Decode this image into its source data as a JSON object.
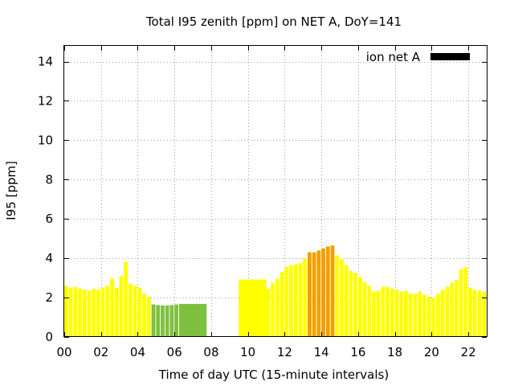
{
  "chart_data": {
    "type": "bar",
    "title": "Total I95 zenith [ppm] on NET A, DoY=141",
    "xlabel": "Time of day UTC (15-minute intervals)",
    "ylabel": "I95 [ppm]",
    "xlim": [
      0,
      23
    ],
    "ylim": [
      0,
      14.8
    ],
    "xticks": [
      "00",
      "02",
      "04",
      "06",
      "08",
      "10",
      "12",
      "14",
      "16",
      "18",
      "20",
      "22"
    ],
    "yticks": [
      "0",
      "2",
      "4",
      "6",
      "8",
      "10",
      "12",
      "14"
    ],
    "grid": true,
    "legend": {
      "label": "ion net A",
      "color": "#000000",
      "position": "top-right"
    },
    "colors": {
      "yellow": "#ffff00",
      "orange": "#f0a000",
      "green": "#80c040"
    },
    "bars": [
      {
        "x": 0.0,
        "w": 0.21,
        "y": 2.6,
        "c": "yellow"
      },
      {
        "x": 0.25,
        "w": 0.21,
        "y": 2.5,
        "c": "yellow"
      },
      {
        "x": 0.5,
        "w": 0.21,
        "y": 2.55,
        "c": "yellow"
      },
      {
        "x": 0.75,
        "w": 0.21,
        "y": 2.45,
        "c": "yellow"
      },
      {
        "x": 1.0,
        "w": 0.21,
        "y": 2.4,
        "c": "yellow"
      },
      {
        "x": 1.25,
        "w": 0.21,
        "y": 2.35,
        "c": "yellow"
      },
      {
        "x": 1.5,
        "w": 0.21,
        "y": 2.45,
        "c": "yellow"
      },
      {
        "x": 1.75,
        "w": 0.21,
        "y": 2.4,
        "c": "yellow"
      },
      {
        "x": 2.0,
        "w": 0.21,
        "y": 2.5,
        "c": "yellow"
      },
      {
        "x": 2.25,
        "w": 0.21,
        "y": 2.6,
        "c": "yellow"
      },
      {
        "x": 2.5,
        "w": 0.21,
        "y": 2.95,
        "c": "yellow"
      },
      {
        "x": 2.75,
        "w": 0.21,
        "y": 2.5,
        "c": "yellow"
      },
      {
        "x": 3.0,
        "w": 0.21,
        "y": 3.1,
        "c": "yellow"
      },
      {
        "x": 3.25,
        "w": 0.21,
        "y": 3.8,
        "c": "yellow"
      },
      {
        "x": 3.5,
        "w": 0.21,
        "y": 2.7,
        "c": "yellow"
      },
      {
        "x": 3.75,
        "w": 0.21,
        "y": 2.6,
        "c": "yellow"
      },
      {
        "x": 4.0,
        "w": 0.21,
        "y": 2.5,
        "c": "yellow"
      },
      {
        "x": 4.25,
        "w": 0.21,
        "y": 2.2,
        "c": "yellow"
      },
      {
        "x": 4.5,
        "w": 0.21,
        "y": 2.05,
        "c": "yellow"
      },
      {
        "x": 4.75,
        "w": 0.21,
        "y": 1.65,
        "c": "green"
      },
      {
        "x": 5.0,
        "w": 0.21,
        "y": 1.62,
        "c": "green"
      },
      {
        "x": 5.25,
        "w": 0.21,
        "y": 1.6,
        "c": "green"
      },
      {
        "x": 5.5,
        "w": 0.21,
        "y": 1.6,
        "c": "green"
      },
      {
        "x": 5.75,
        "w": 0.21,
        "y": 1.62,
        "c": "green"
      },
      {
        "x": 6.0,
        "w": 0.21,
        "y": 1.65,
        "c": "green"
      },
      {
        "x": 6.25,
        "w": 1.5,
        "y": 1.68,
        "c": "green"
      },
      {
        "x": 9.5,
        "w": 1.5,
        "y": 2.92,
        "c": "yellow"
      },
      {
        "x": 11.0,
        "w": 0.21,
        "y": 2.45,
        "c": "yellow"
      },
      {
        "x": 11.25,
        "w": 0.21,
        "y": 2.75,
        "c": "yellow"
      },
      {
        "x": 11.5,
        "w": 0.21,
        "y": 2.95,
        "c": "yellow"
      },
      {
        "x": 11.75,
        "w": 0.21,
        "y": 3.3,
        "c": "yellow"
      },
      {
        "x": 12.0,
        "w": 0.21,
        "y": 3.55,
        "c": "yellow"
      },
      {
        "x": 12.25,
        "w": 0.21,
        "y": 3.65,
        "c": "yellow"
      },
      {
        "x": 12.5,
        "w": 0.21,
        "y": 3.7,
        "c": "yellow"
      },
      {
        "x": 12.75,
        "w": 0.21,
        "y": 3.75,
        "c": "yellow"
      },
      {
        "x": 13.0,
        "w": 0.21,
        "y": 4.0,
        "c": "yellow"
      },
      {
        "x": 13.25,
        "w": 0.21,
        "y": 4.3,
        "c": "orange"
      },
      {
        "x": 13.5,
        "w": 0.21,
        "y": 4.3,
        "c": "orange"
      },
      {
        "x": 13.75,
        "w": 0.21,
        "y": 4.4,
        "c": "orange"
      },
      {
        "x": 14.0,
        "w": 0.21,
        "y": 4.5,
        "c": "orange"
      },
      {
        "x": 14.25,
        "w": 0.21,
        "y": 4.6,
        "c": "orange"
      },
      {
        "x": 14.5,
        "w": 0.21,
        "y": 4.65,
        "c": "orange"
      },
      {
        "x": 14.75,
        "w": 0.21,
        "y": 4.15,
        "c": "yellow"
      },
      {
        "x": 15.0,
        "w": 0.21,
        "y": 3.95,
        "c": "yellow"
      },
      {
        "x": 15.25,
        "w": 0.21,
        "y": 3.65,
        "c": "yellow"
      },
      {
        "x": 15.5,
        "w": 0.21,
        "y": 3.35,
        "c": "yellow"
      },
      {
        "x": 15.75,
        "w": 0.21,
        "y": 3.25,
        "c": "yellow"
      },
      {
        "x": 16.0,
        "w": 0.21,
        "y": 3.05,
        "c": "yellow"
      },
      {
        "x": 16.25,
        "w": 0.21,
        "y": 2.8,
        "c": "yellow"
      },
      {
        "x": 16.5,
        "w": 0.21,
        "y": 2.6,
        "c": "yellow"
      },
      {
        "x": 16.75,
        "w": 0.21,
        "y": 2.3,
        "c": "yellow"
      },
      {
        "x": 17.0,
        "w": 0.21,
        "y": 2.35,
        "c": "yellow"
      },
      {
        "x": 17.25,
        "w": 0.21,
        "y": 2.55,
        "c": "yellow"
      },
      {
        "x": 17.5,
        "w": 0.21,
        "y": 2.55,
        "c": "yellow"
      },
      {
        "x": 17.75,
        "w": 0.21,
        "y": 2.45,
        "c": "yellow"
      },
      {
        "x": 18.0,
        "w": 0.21,
        "y": 2.4,
        "c": "yellow"
      },
      {
        "x": 18.25,
        "w": 0.21,
        "y": 2.3,
        "c": "yellow"
      },
      {
        "x": 18.5,
        "w": 0.21,
        "y": 2.35,
        "c": "yellow"
      },
      {
        "x": 18.75,
        "w": 0.21,
        "y": 2.2,
        "c": "yellow"
      },
      {
        "x": 19.0,
        "w": 0.21,
        "y": 2.2,
        "c": "yellow"
      },
      {
        "x": 19.25,
        "w": 0.21,
        "y": 2.3,
        "c": "yellow"
      },
      {
        "x": 19.5,
        "w": 0.21,
        "y": 2.15,
        "c": "yellow"
      },
      {
        "x": 19.75,
        "w": 0.21,
        "y": 2.05,
        "c": "yellow"
      },
      {
        "x": 20.0,
        "w": 0.21,
        "y": 2.0,
        "c": "yellow"
      },
      {
        "x": 20.25,
        "w": 0.21,
        "y": 2.2,
        "c": "yellow"
      },
      {
        "x": 20.5,
        "w": 0.21,
        "y": 2.4,
        "c": "yellow"
      },
      {
        "x": 20.75,
        "w": 0.21,
        "y": 2.55,
        "c": "yellow"
      },
      {
        "x": 21.0,
        "w": 0.21,
        "y": 2.75,
        "c": "yellow"
      },
      {
        "x": 21.25,
        "w": 0.21,
        "y": 2.9,
        "c": "yellow"
      },
      {
        "x": 21.5,
        "w": 0.21,
        "y": 3.45,
        "c": "yellow"
      },
      {
        "x": 21.75,
        "w": 0.21,
        "y": 3.55,
        "c": "yellow"
      },
      {
        "x": 22.0,
        "w": 0.21,
        "y": 2.5,
        "c": "yellow"
      },
      {
        "x": 22.25,
        "w": 0.21,
        "y": 2.4,
        "c": "yellow"
      },
      {
        "x": 22.5,
        "w": 0.21,
        "y": 2.35,
        "c": "yellow"
      },
      {
        "x": 22.75,
        "w": 0.21,
        "y": 2.3,
        "c": "yellow"
      }
    ]
  }
}
